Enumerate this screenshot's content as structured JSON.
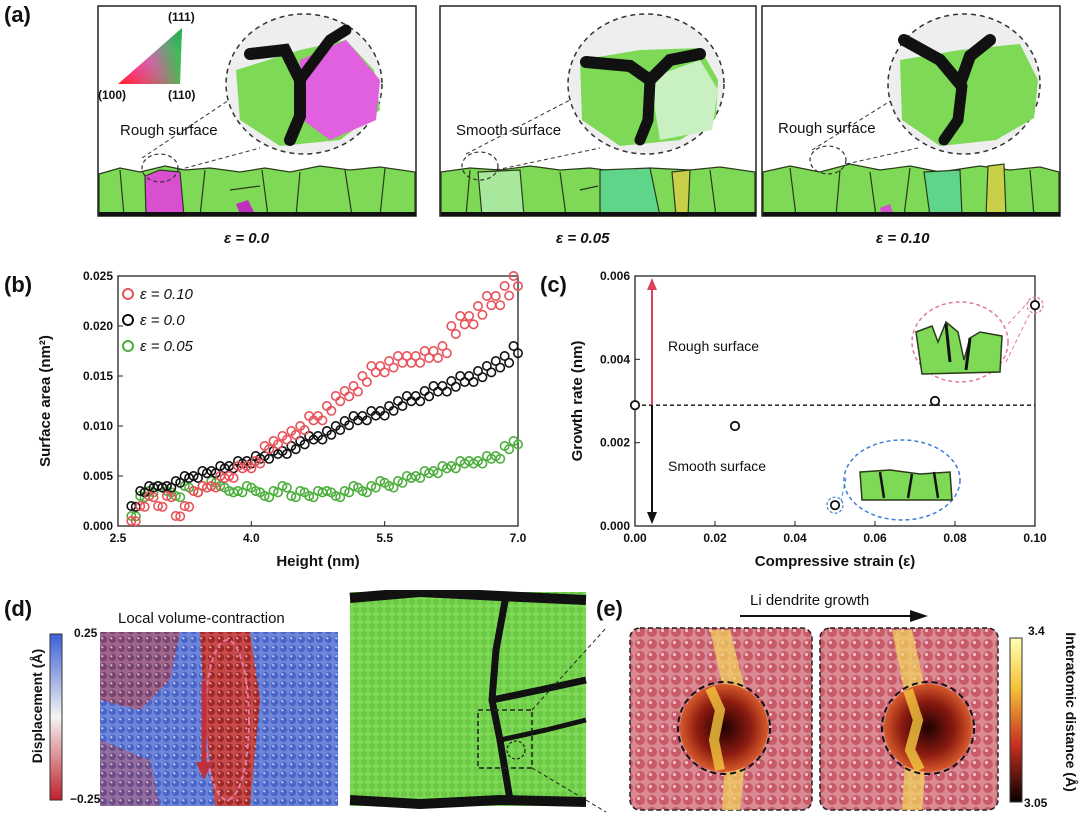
{
  "panels": {
    "a": {
      "letter": "(a)",
      "triangle_labels": {
        "top": "(111)",
        "left": "(100)",
        "right": "(110)"
      },
      "subpanels": [
        {
          "surface_label": "Rough surface",
          "strain_label": "ε = 0.0"
        },
        {
          "surface_label": "Smooth surface",
          "strain_label": "ε = 0.05"
        },
        {
          "surface_label": "Rough surface",
          "strain_label": "ε = 0.10"
        }
      ]
    },
    "b": {
      "letter": "(b)"
    },
    "c": {
      "letter": "(c)",
      "rough_label": "Rough surface",
      "smooth_label": "Smooth surface"
    },
    "d": {
      "letter": "(d)",
      "title": "Local volume-contraction",
      "colorbar_label": "Displacement (Å)",
      "colorbar_max": "0.25",
      "colorbar_min": "−0.25"
    },
    "e": {
      "letter": "(e)",
      "arrow_label": "Li dendrite growth",
      "colorbar_label": "Interatomic distance (Å)",
      "colorbar_max": "3.4",
      "colorbar_min": "3.05"
    }
  },
  "colors": {
    "green": "#7ed957",
    "magenta": "#d84fd0",
    "red_series": "#e8525a",
    "black_series": "#111111",
    "green_series": "#4cae3c",
    "arrow_red": "#e0405a",
    "blue_dash": "#3f7fd6",
    "pink_dash": "#e07aa0"
  },
  "chart_data": [
    {
      "type": "scatter",
      "panel": "b",
      "xlabel": "Height (nm)",
      "ylabel": "Surface area (nm²)",
      "xlim": [
        2.5,
        7.0
      ],
      "ylim": [
        0.0,
        0.025
      ],
      "xticks": [
        "2.5",
        "4.0",
        "5.5",
        "7.0"
      ],
      "yticks": [
        "0.000",
        "0.005",
        "0.010",
        "0.015",
        "0.020",
        "0.025"
      ],
      "legend_position": "top-left",
      "series": [
        {
          "name": "ε = 0.10",
          "color": "#e8525a",
          "points": [
            [
              2.65,
              0.0005
            ],
            [
              2.75,
              0.002
            ],
            [
              2.85,
              0.003
            ],
            [
              2.95,
              0.002
            ],
            [
              3.05,
              0.003
            ],
            [
              3.15,
              0.001
            ],
            [
              3.25,
              0.002
            ],
            [
              3.35,
              0.0035
            ],
            [
              3.45,
              0.004
            ],
            [
              3.55,
              0.004
            ],
            [
              3.65,
              0.005
            ],
            [
              3.75,
              0.005
            ],
            [
              3.85,
              0.006
            ],
            [
              3.95,
              0.006
            ],
            [
              4.05,
              0.0065
            ],
            [
              4.15,
              0.008
            ],
            [
              4.25,
              0.0085
            ],
            [
              4.35,
              0.009
            ],
            [
              4.45,
              0.0095
            ],
            [
              4.55,
              0.01
            ],
            [
              4.65,
              0.011
            ],
            [
              4.75,
              0.011
            ],
            [
              4.85,
              0.012
            ],
            [
              4.95,
              0.013
            ],
            [
              5.05,
              0.0135
            ],
            [
              5.15,
              0.014
            ],
            [
              5.25,
              0.015
            ],
            [
              5.35,
              0.016
            ],
            [
              5.45,
              0.016
            ],
            [
              5.55,
              0.0165
            ],
            [
              5.65,
              0.017
            ],
            [
              5.75,
              0.017
            ],
            [
              5.85,
              0.017
            ],
            [
              5.95,
              0.0175
            ],
            [
              6.05,
              0.0175
            ],
            [
              6.15,
              0.018
            ],
            [
              6.25,
              0.02
            ],
            [
              6.35,
              0.021
            ],
            [
              6.45,
              0.021
            ],
            [
              6.55,
              0.022
            ],
            [
              6.65,
              0.023
            ],
            [
              6.75,
              0.023
            ],
            [
              6.85,
              0.024
            ],
            [
              6.95,
              0.025
            ]
          ]
        },
        {
          "name": "ε = 0.0",
          "color": "#111111",
          "points": [
            [
              2.65,
              0.002
            ],
            [
              2.75,
              0.0035
            ],
            [
              2.85,
              0.004
            ],
            [
              2.95,
              0.004
            ],
            [
              3.05,
              0.004
            ],
            [
              3.15,
              0.0045
            ],
            [
              3.25,
              0.005
            ],
            [
              3.35,
              0.005
            ],
            [
              3.45,
              0.0055
            ],
            [
              3.55,
              0.0055
            ],
            [
              3.65,
              0.006
            ],
            [
              3.75,
              0.006
            ],
            [
              3.85,
              0.0065
            ],
            [
              3.95,
              0.0065
            ],
            [
              4.05,
              0.007
            ],
            [
              4.15,
              0.007
            ],
            [
              4.25,
              0.0075
            ],
            [
              4.35,
              0.0075
            ],
            [
              4.45,
              0.008
            ],
            [
              4.55,
              0.0085
            ],
            [
              4.65,
              0.009
            ],
            [
              4.75,
              0.009
            ],
            [
              4.85,
              0.0095
            ],
            [
              4.95,
              0.01
            ],
            [
              5.05,
              0.0105
            ],
            [
              5.15,
              0.011
            ],
            [
              5.25,
              0.011
            ],
            [
              5.35,
              0.0115
            ],
            [
              5.45,
              0.0115
            ],
            [
              5.55,
              0.012
            ],
            [
              5.65,
              0.0125
            ],
            [
              5.75,
              0.013
            ],
            [
              5.85,
              0.013
            ],
            [
              5.95,
              0.0135
            ],
            [
              6.05,
              0.014
            ],
            [
              6.15,
              0.014
            ],
            [
              6.25,
              0.0145
            ],
            [
              6.35,
              0.015
            ],
            [
              6.45,
              0.015
            ],
            [
              6.55,
              0.0155
            ],
            [
              6.65,
              0.016
            ],
            [
              6.75,
              0.0165
            ],
            [
              6.85,
              0.017
            ],
            [
              6.95,
              0.018
            ]
          ]
        },
        {
          "name": "ε = 0.05",
          "color": "#4cae3c",
          "points": [
            [
              2.65,
              0.001
            ],
            [
              2.75,
              0.003
            ],
            [
              2.85,
              0.0035
            ],
            [
              2.95,
              0.004
            ],
            [
              3.05,
              0.0035
            ],
            [
              3.15,
              0.003
            ],
            [
              3.25,
              0.004
            ],
            [
              3.35,
              0.0035
            ],
            [
              3.45,
              0.004
            ],
            [
              3.55,
              0.0045
            ],
            [
              3.65,
              0.004
            ],
            [
              3.75,
              0.0035
            ],
            [
              3.85,
              0.0035
            ],
            [
              3.95,
              0.004
            ],
            [
              4.05,
              0.0035
            ],
            [
              4.15,
              0.003
            ],
            [
              4.25,
              0.0035
            ],
            [
              4.35,
              0.004
            ],
            [
              4.45,
              0.003
            ],
            [
              4.55,
              0.0035
            ],
            [
              4.65,
              0.003
            ],
            [
              4.75,
              0.0035
            ],
            [
              4.85,
              0.0035
            ],
            [
              4.95,
              0.003
            ],
            [
              5.05,
              0.0035
            ],
            [
              5.15,
              0.004
            ],
            [
              5.25,
              0.0035
            ],
            [
              5.35,
              0.004
            ],
            [
              5.45,
              0.0045
            ],
            [
              5.55,
              0.004
            ],
            [
              5.65,
              0.0045
            ],
            [
              5.75,
              0.005
            ],
            [
              5.85,
              0.005
            ],
            [
              5.95,
              0.0055
            ],
            [
              6.05,
              0.0055
            ],
            [
              6.15,
              0.006
            ],
            [
              6.25,
              0.006
            ],
            [
              6.35,
              0.0065
            ],
            [
              6.45,
              0.0065
            ],
            [
              6.55,
              0.0065
            ],
            [
              6.65,
              0.007
            ],
            [
              6.75,
              0.007
            ],
            [
              6.85,
              0.008
            ],
            [
              6.95,
              0.0085
            ]
          ]
        }
      ]
    },
    {
      "type": "scatter",
      "panel": "c",
      "xlabel": "Compressive strain (ε)",
      "ylabel": "Growth rate (nm)",
      "xlim": [
        0.0,
        0.1
      ],
      "ylim": [
        0.0,
        0.006
      ],
      "xticks": [
        "0.00",
        "0.02",
        "0.04",
        "0.06",
        "0.08",
        "0.10"
      ],
      "yticks": [
        "0.000",
        "0.002",
        "0.004",
        "0.006"
      ],
      "threshold": 0.0029,
      "points": [
        [
          0.0,
          0.0029
        ],
        [
          0.025,
          0.0024
        ],
        [
          0.05,
          0.0005
        ],
        [
          0.075,
          0.003
        ],
        [
          0.1,
          0.0053
        ]
      ]
    }
  ]
}
